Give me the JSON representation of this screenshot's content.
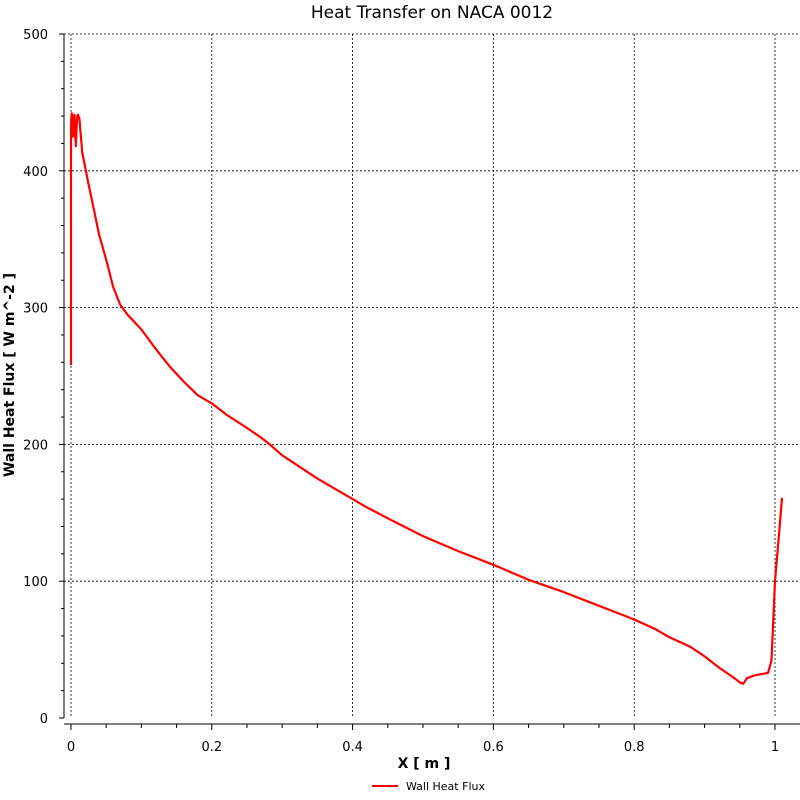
{
  "chart_data": {
    "type": "line",
    "title": "Heat Transfer on NACA 0012",
    "xlabel": "X [ m ]",
    "ylabel": "Wall Heat Flux [ W m^-2 ]",
    "xlim": [
      0,
      1.02
    ],
    "ylim": [
      0,
      500
    ],
    "xticks": [
      0,
      0.2,
      0.4,
      0.6,
      0.8,
      1
    ],
    "xtick_labels": [
      "0",
      "0.2",
      "0.4",
      "0.6",
      "0.8",
      "1"
    ],
    "yticks": [
      0,
      100,
      200,
      300,
      400,
      500
    ],
    "ytick_labels": [
      "0",
      "100",
      "200",
      "300",
      "400",
      "500"
    ],
    "grid": true,
    "legend_position": "bottom-center",
    "colors": {
      "series": "#ff0000",
      "grid": "#000000",
      "axis": "#000000"
    },
    "series": [
      {
        "name": "Wall Heat Flux",
        "x": [
          0.0,
          0.0,
          0.001,
          0.002,
          0.003,
          0.004,
          0.005,
          0.006,
          0.007,
          0.008,
          0.009,
          0.01,
          0.012,
          0.014,
          0.016,
          0.018,
          0.02,
          0.025,
          0.03,
          0.04,
          0.05,
          0.06,
          0.07,
          0.08,
          0.1,
          0.12,
          0.14,
          0.16,
          0.18,
          0.2,
          0.22,
          0.25,
          0.27,
          0.28,
          0.3,
          0.35,
          0.4,
          0.42,
          0.45,
          0.5,
          0.55,
          0.6,
          0.65,
          0.7,
          0.75,
          0.78,
          0.8,
          0.83,
          0.85,
          0.88,
          0.9,
          0.92,
          0.94,
          0.95,
          0.955,
          0.96,
          0.97,
          0.98,
          0.99,
          0.995,
          1.0,
          1.005,
          1.01
        ],
        "y": [
          258,
          435,
          442,
          438,
          425,
          438,
          441,
          426,
          418,
          432,
          440,
          441,
          438,
          425,
          413,
          408,
          403,
          390,
          378,
          353,
          335,
          315,
          302,
          295,
          284,
          270,
          257,
          246,
          236,
          230,
          222,
          212,
          205,
          201,
          192,
          175,
          160,
          154,
          146,
          133,
          122,
          112,
          101,
          92,
          82,
          76,
          72,
          65,
          59,
          52,
          45,
          37,
          30,
          26,
          25,
          29,
          31,
          32,
          33,
          42,
          100,
          130,
          161
        ]
      }
    ]
  }
}
